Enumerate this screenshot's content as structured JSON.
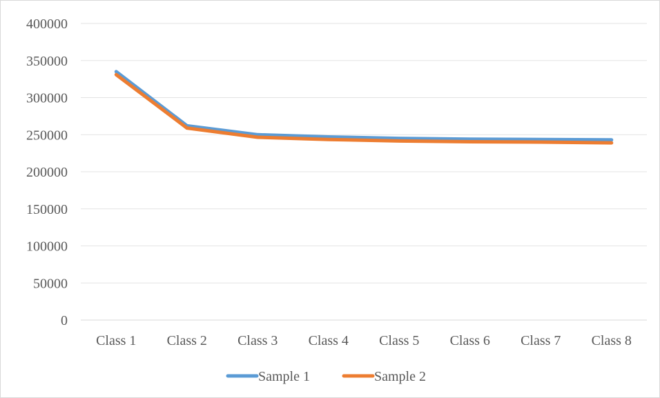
{
  "chart_data": {
    "type": "line",
    "title": "",
    "xlabel": "",
    "ylabel": "",
    "categories": [
      "Class 1",
      "Class 2",
      "Class 3",
      "Class 4",
      "Class 5",
      "Class 6",
      "Class 7",
      "Class 8"
    ],
    "ylim": [
      0,
      400000
    ],
    "yticks": [
      0,
      50000,
      100000,
      150000,
      200000,
      250000,
      300000,
      350000,
      400000
    ],
    "ytick_labels": [
      "0",
      "50000",
      "100000",
      "150000",
      "200000",
      "250000",
      "300000",
      "350000",
      "400000"
    ],
    "grid": "horizontal",
    "legend": "bottom",
    "series": [
      {
        "name": "Sample 1",
        "color": "#5b9bd5",
        "values": [
          335000,
          262000,
          250000,
          247000,
          245000,
          244000,
          243500,
          243000
        ]
      },
      {
        "name": "Sample 2",
        "color": "#ed7d31",
        "values": [
          331000,
          259000,
          246500,
          243500,
          241500,
          240500,
          240000,
          239000
        ]
      }
    ]
  }
}
